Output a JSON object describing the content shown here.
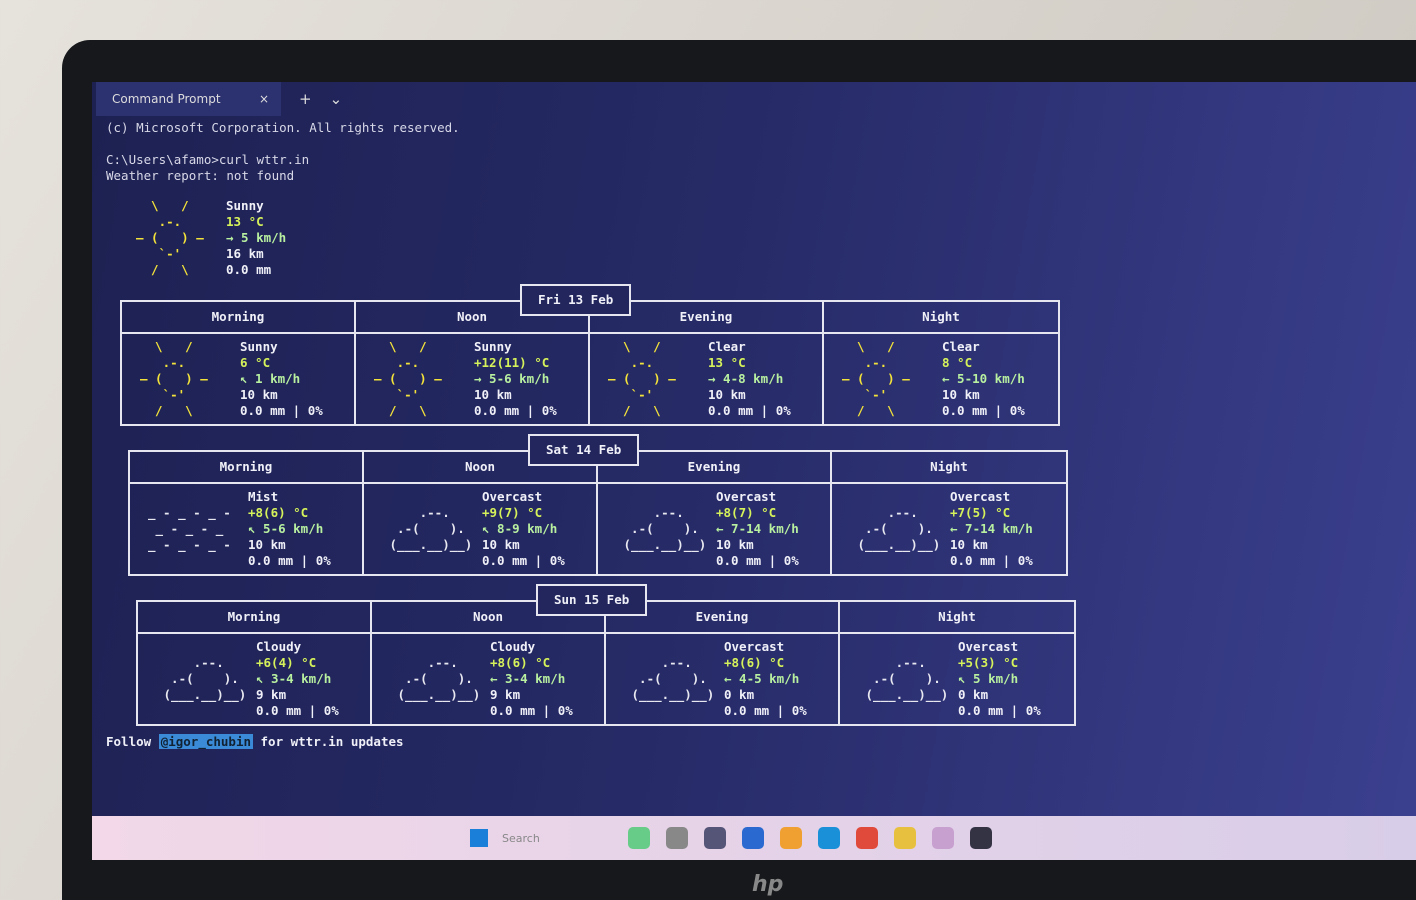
{
  "window": {
    "tab_title": "Command Prompt",
    "new_tab": "+",
    "dropdown": "⌄",
    "close": "×"
  },
  "terminal": {
    "lines": [
      "(c) Microsoft Corporation. All rights reserved.",
      "C:\\Users\\afamo>curl wttr.in",
      "Weather report: not found"
    ],
    "current": {
      "icon": [
        "  \\   /  ",
        "   .-.   ",
        "― (   ) ―",
        "   `-'   ",
        "  /   \\  "
      ],
      "icon_color": "#f3e23a",
      "details": [
        "Sunny",
        "13 °C",
        "→ 5 km/h",
        "16 km",
        "0.0 mm"
      ]
    },
    "days": [
      {
        "date": "Fri 13 Feb",
        "periods": [
          {
            "name": "Morning",
            "icon": [
              "  \\   /  ",
              "   .-.   ",
              "― (   ) ―",
              "   `-'   ",
              "  /   \\  "
            ],
            "icon_color": "#f3e23a",
            "details": [
              "Sunny",
              "6 °C",
              "↖ 1 km/h",
              "10 km",
              "0.0 mm | 0%"
            ]
          },
          {
            "name": "Noon",
            "icon": [
              "  \\   /  ",
              "   .-.   ",
              "― (   ) ―",
              "   `-'   ",
              "  /   \\  "
            ],
            "icon_color": "#f3e23a",
            "details": [
              "Sunny",
              "+12(11) °C",
              "→ 5-6 km/h",
              "10 km",
              "0.0 mm | 0%"
            ]
          },
          {
            "name": "Evening",
            "icon": [
              "  \\   /  ",
              "   .-.   ",
              "― (   ) ―",
              "   `-'   ",
              "  /   \\  "
            ],
            "icon_color": "#f3e23a",
            "details": [
              "Clear",
              "13 °C",
              "→ 4-8 km/h",
              "10 km",
              "0.0 mm | 0%"
            ]
          },
          {
            "name": "Night",
            "icon": [
              "  \\   /  ",
              "   .-.   ",
              "― (   ) ―",
              "   `-'   ",
              "  /   \\  "
            ],
            "icon_color": "#f3e23a",
            "details": [
              "Clear",
              "8 °C",
              "← 5-10 km/h",
              "10 km",
              "0.0 mm | 0%"
            ]
          }
        ]
      },
      {
        "date": "Sat 14 Feb",
        "periods": [
          {
            "name": "Morning",
            "icon": [
              "_ - _ - _ -",
              " _ - _ - _ ",
              "_ - _ - _ -"
            ],
            "icon_color": "#e8e8f0",
            "details": [
              "Mist",
              "+8(6) °C",
              "↖ 5-6 km/h",
              "10 km",
              "0.0 mm | 0%"
            ]
          },
          {
            "name": "Noon",
            "icon": [
              "     .--.    ",
              "  .-(    ).  ",
              " (___.__)__) "
            ],
            "icon_color": "#e8e8f0",
            "details": [
              "Overcast",
              "+9(7) °C",
              "↖ 8-9 km/h",
              "10 km",
              "0.0 mm | 0%"
            ]
          },
          {
            "name": "Evening",
            "icon": [
              "     .--.    ",
              "  .-(    ).  ",
              " (___.__)__) "
            ],
            "icon_color": "#e8e8f0",
            "details": [
              "Overcast",
              "+8(7) °C",
              "← 7-14 km/h",
              "10 km",
              "0.0 mm | 0%"
            ]
          },
          {
            "name": "Night",
            "icon": [
              "     .--.    ",
              "  .-(    ).  ",
              " (___.__)__) "
            ],
            "icon_color": "#e8e8f0",
            "details": [
              "Overcast",
              "+7(5) °C",
              "← 7-14 km/h",
              "10 km",
              "0.0 mm | 0%"
            ]
          }
        ]
      },
      {
        "date": "Sun 15 Feb",
        "periods": [
          {
            "name": "Morning",
            "icon": [
              "     .--.    ",
              "  .-(    ).  ",
              " (___.__)__) "
            ],
            "icon_color": "#e8e8f0",
            "details": [
              "Cloudy",
              "+6(4) °C",
              "↖ 3-4 km/h",
              "9 km",
              "0.0 mm | 0%"
            ]
          },
          {
            "name": "Noon",
            "icon": [
              "     .--.    ",
              "  .-(    ).  ",
              " (___.__)__) "
            ],
            "icon_color": "#e8e8f0",
            "details": [
              "Cloudy",
              "+8(6) °C",
              "← 3-4 km/h",
              "9 km",
              "0.0 mm | 0%"
            ]
          },
          {
            "name": "Evening",
            "icon": [
              "     .--.    ",
              "  .-(    ).  ",
              " (___.__)__) "
            ],
            "icon_color": "#e8e8f0",
            "details": [
              "Overcast",
              "+8(6) °C",
              "← 4-5 km/h",
              "0 km",
              "0.0 mm | 0%"
            ]
          },
          {
            "name": "Night",
            "icon": [
              "     .--.    ",
              "  .-(    ).  ",
              " (___.__)__) "
            ],
            "icon_color": "#e8e8f0",
            "details": [
              "Overcast",
              "+5(3) °C",
              "↖ 5 km/h",
              "0 km",
              "0.0 mm | 0%"
            ]
          }
        ]
      }
    ],
    "footer": {
      "before": "Follow",
      "handle": "@igor_chubin",
      "after": "for wttr.in updates"
    }
  },
  "taskbar": {
    "search": "Search"
  },
  "bezel": {
    "logo": "hp"
  }
}
